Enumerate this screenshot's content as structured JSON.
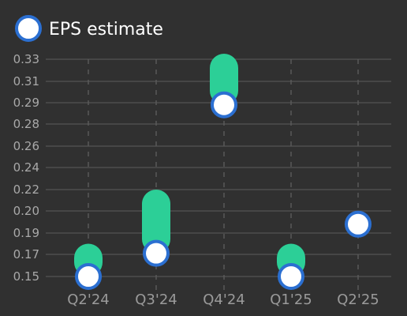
{
  "chart_data": {
    "type": "range-bar",
    "legend": {
      "label": "EPS estimate",
      "position": "top-left"
    },
    "categories": [
      "Q2'24",
      "Q3'24",
      "Q4'24",
      "Q1'25",
      "Q2'25"
    ],
    "y_ticks": [
      0.15,
      0.17,
      0.19,
      0.2,
      0.22,
      0.24,
      0.26,
      0.28,
      0.29,
      0.31,
      0.33
    ],
    "y_tick_labels": [
      "0.15",
      "0.17",
      "0.19",
      "0.20",
      "0.22",
      "0.24",
      "0.26",
      "0.28",
      "0.29",
      "0.31",
      "0.33"
    ],
    "ylim": [
      0.15,
      0.33
    ],
    "grid": true,
    "series": [
      {
        "name": "EPS estimate",
        "values": [
          0.15,
          0.171,
          0.289,
          0.15,
          0.194
        ]
      }
    ],
    "ranges": [
      {
        "low": 0.15,
        "high": 0.18
      },
      {
        "low": 0.171,
        "high": 0.22
      },
      {
        "low": 0.289,
        "high": 0.335
      },
      {
        "low": 0.15,
        "high": 0.18
      },
      null
    ],
    "colors": {
      "background": "#303030",
      "range_bar": "#2ccf97",
      "marker_fill": "#ffffff",
      "marker_stroke": "#2b6fd1",
      "grid": "#4e4e4e",
      "vertical_grid": "#595959"
    }
  }
}
